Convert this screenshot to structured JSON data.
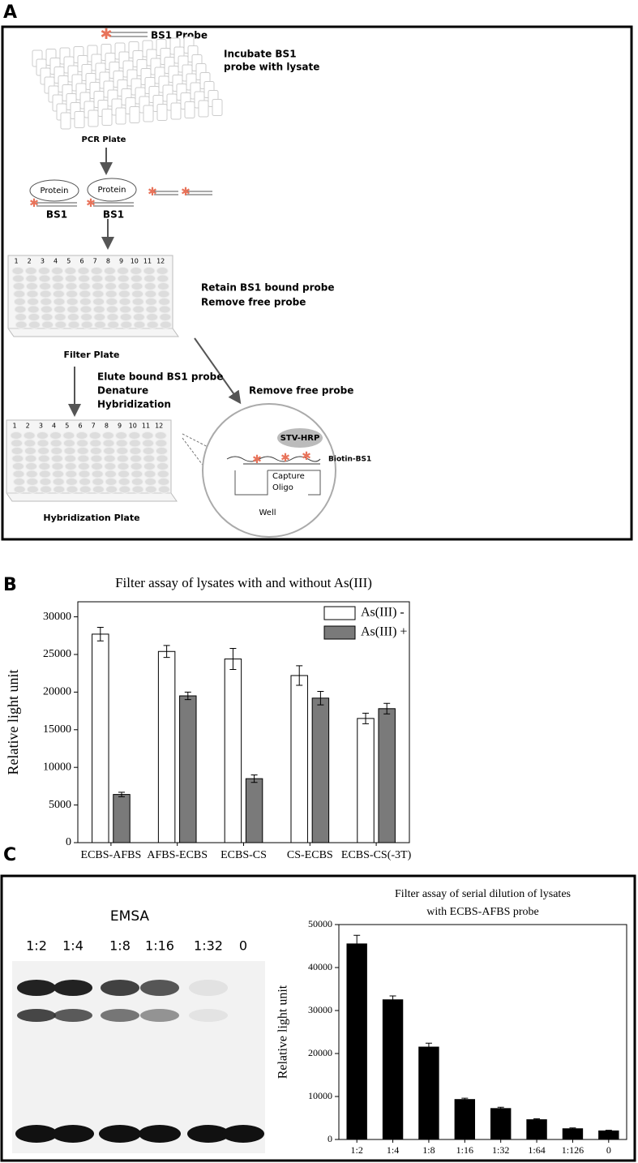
{
  "panel_labels": [
    "A",
    "B",
    "C"
  ],
  "diagram": {
    "probe": "BS1 Probe",
    "incubate": [
      "Incubate BS1",
      "probe with lysate"
    ],
    "pcr_plate": "PCR Plate",
    "proteins": [
      "Protein",
      "Protein"
    ],
    "bs1": [
      "BS1",
      "BS1"
    ],
    "column_numbers": [
      "1",
      "2",
      "3",
      "4",
      "5",
      "6",
      "7",
      "8",
      "9",
      "10",
      "11",
      "12"
    ],
    "retain": [
      "Retain BS1 bound probe",
      "Remove free probe"
    ],
    "filter_plate": "Filter Plate",
    "elute": [
      "Elute bound BS1 probe",
      "Denature",
      "Hybridization"
    ],
    "remove": "Remove free probe",
    "stv": "STV-HRP",
    "biotin": "Biotin-BS1",
    "capture": [
      "Capture",
      "Oligo"
    ],
    "well": "Well",
    "hyb_plate": "Hybridization Plate"
  },
  "gel": {
    "title": "EMSA",
    "lanes": [
      "1:2",
      "1:4",
      "1:8",
      "1:16",
      "1:32",
      "0"
    ]
  },
  "chart_data": [
    {
      "type": "bar",
      "title": [
        "Filter assay of lysates with and without As(III)"
      ],
      "y_label": "Relative light unit",
      "categories": [
        "ECBS-AFBS",
        "AFBS-ECBS",
        "ECBS-CS",
        "CS-ECBS",
        "ECBS-CS(-3T)"
      ],
      "series": [
        {
          "name": "As(III) -",
          "color": "#ffffff",
          "values": [
            27700,
            25400,
            24400,
            22200,
            16500
          ],
          "errors": [
            900,
            800,
            1400,
            1300,
            700
          ]
        },
        {
          "name": "As(III) +",
          "color": "#7a7a7a",
          "values": [
            6400,
            19500,
            8500,
            19200,
            17800
          ],
          "errors": [
            300,
            500,
            500,
            900,
            700
          ]
        }
      ],
      "ylim": [
        0,
        32000
      ],
      "yticks": [
        0,
        5000,
        10000,
        15000,
        20000,
        25000,
        30000
      ],
      "grid": false,
      "legend": "upper right"
    },
    {
      "type": "bar",
      "title": [
        "Filter assay of serial dilution of lysates",
        "with ECBS-AFBS probe"
      ],
      "y_label": "Relative light unit",
      "categories": [
        "1:2",
        "1:4",
        "1:8",
        "1:16",
        "1:32",
        "1:64",
        "1:126",
        "0"
      ],
      "series": [
        {
          "color": "#000000",
          "values": [
            45500,
            32500,
            21500,
            9300,
            7200,
            4600,
            2500,
            2000
          ],
          "errors": [
            2000,
            900,
            900,
            300,
            300,
            200,
            200,
            150
          ]
        }
      ],
      "ylim": [
        0,
        50000
      ],
      "yticks": [
        0,
        10000,
        20000,
        30000,
        40000,
        50000
      ],
      "grid": false
    }
  ]
}
